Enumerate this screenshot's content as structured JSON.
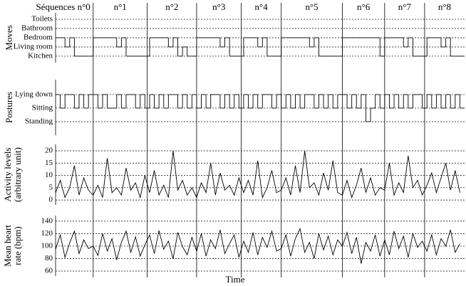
{
  "sequences": {
    "labels": [
      "Séquences n°0",
      "n°1",
      "n°2",
      "n°3",
      "n°4",
      "n°5",
      "n°6",
      "n°7",
      "n°8"
    ],
    "boundaries": [
      8,
      19.5,
      30,
      39.5,
      48,
      61,
      70,
      78.5
    ],
    "xlim": [
      0,
      87
    ]
  },
  "x_label": "Time",
  "chart_data": [
    {
      "type": "step",
      "ylabel": [
        "Moves"
      ],
      "color": "#000000",
      "grid": true,
      "ylim": [
        -0.7,
        4.7
      ],
      "yticks": [
        {
          "value": 4,
          "label": "Toilets"
        },
        {
          "value": 3,
          "label": "Bathroom"
        },
        {
          "value": 2,
          "label": "Bedroom"
        },
        {
          "value": 1,
          "label": "Living room"
        },
        {
          "value": 0,
          "label": "Kitchen"
        }
      ],
      "values": [
        2,
        2,
        1,
        2,
        0,
        0,
        0,
        0,
        2,
        2,
        2,
        2,
        2,
        1,
        2,
        0,
        0,
        0,
        0,
        0,
        2,
        2,
        2,
        2,
        1,
        2,
        0,
        1,
        0,
        0,
        2,
        2,
        2,
        2,
        2,
        1,
        2,
        0,
        0,
        0,
        2,
        2,
        2,
        1,
        2,
        0,
        0,
        0,
        2,
        2,
        2,
        2,
        2,
        2,
        1,
        2,
        0,
        0,
        0,
        0,
        0,
        2,
        2,
        2,
        2,
        2,
        2,
        2,
        2,
        0,
        2,
        2,
        2,
        2,
        1,
        2,
        0,
        0,
        0,
        2,
        2,
        2,
        1,
        2,
        0,
        0,
        0
      ]
    },
    {
      "type": "step",
      "ylabel": [
        "Postures"
      ],
      "color": "#000000",
      "grid": true,
      "ylim": [
        -1,
        3.1
      ],
      "yticks": [
        {
          "value": 2,
          "label": "Lying down"
        },
        {
          "value": 1,
          "label": "Sitting"
        },
        {
          "value": 0,
          "label": "Standing"
        }
      ],
      "values": [
        2,
        1,
        2,
        2,
        1,
        2,
        1,
        2,
        2,
        1,
        2,
        1,
        1,
        2,
        1,
        2,
        2,
        1,
        2,
        1,
        2,
        1,
        2,
        1,
        2,
        2,
        1,
        2,
        1,
        2,
        1,
        2,
        1,
        2,
        2,
        1,
        2,
        1,
        2,
        1,
        2,
        1,
        2,
        1,
        2,
        2,
        1,
        2,
        1,
        2,
        1,
        2,
        1,
        2,
        2,
        1,
        2,
        1,
        2,
        1,
        2,
        2,
        1,
        2,
        1,
        2,
        0,
        1,
        2,
        1,
        2,
        1,
        2,
        1,
        2,
        1,
        2,
        2,
        1,
        2,
        1,
        2,
        1,
        2,
        1,
        2,
        1
      ]
    },
    {
      "type": "line",
      "ylabel": [
        "Activity levels",
        "(arbitrary unit)"
      ],
      "color": "#000000",
      "grid": true,
      "ylim": [
        -2,
        22.6
      ],
      "yticks": [
        0,
        5,
        10,
        15,
        20
      ],
      "values": [
        3,
        8,
        1,
        5,
        14,
        2,
        9,
        4,
        2,
        6,
        1,
        17,
        3,
        5,
        2,
        13,
        4,
        7,
        1,
        10,
        3,
        12,
        2,
        6,
        1,
        20,
        4,
        8,
        2,
        5,
        1,
        7,
        3,
        15,
        2,
        11,
        4,
        6,
        2,
        9,
        3,
        8,
        2,
        16,
        1,
        5,
        12,
        3,
        4,
        9,
        2,
        14,
        3,
        20,
        5,
        7,
        2,
        11,
        4,
        16,
        3,
        2,
        8,
        1,
        6,
        13,
        3,
        9,
        2,
        5,
        4,
        15,
        2,
        7,
        3,
        18,
        5,
        8,
        2,
        6,
        11,
        3,
        9,
        15,
        4,
        12,
        3
      ]
    },
    {
      "type": "line",
      "ylabel": [
        "Mean heart",
        "rate (bpm)"
      ],
      "color": "#000000",
      "grid": true,
      "ylim": [
        52,
        149
      ],
      "yticks": [
        60,
        80,
        100,
        120,
        140
      ],
      "values": [
        95,
        118,
        82,
        105,
        124,
        88,
        110,
        96,
        100,
        85,
        120,
        92,
        112,
        78,
        106,
        124,
        90,
        115,
        84,
        102,
        118,
        88,
        125,
        95,
        108,
        80,
        122,
        99,
        86,
        114,
        92,
        120,
        84,
        110,
        96,
        126,
        88,
        104,
        118,
        82,
        108,
        90,
        122,
        86,
        114,
        98,
        124,
        92,
        96,
        118,
        84,
        112,
        128,
        90,
        106,
        80,
        120,
        94,
        116,
        86,
        110,
        100,
        122,
        88,
        114,
        72,
        106,
        92,
        118,
        84,
        110,
        86,
        124,
        96,
        116,
        82,
        120,
        98,
        108,
        92,
        118,
        86,
        112,
        100,
        126,
        90,
        104
      ]
    }
  ]
}
